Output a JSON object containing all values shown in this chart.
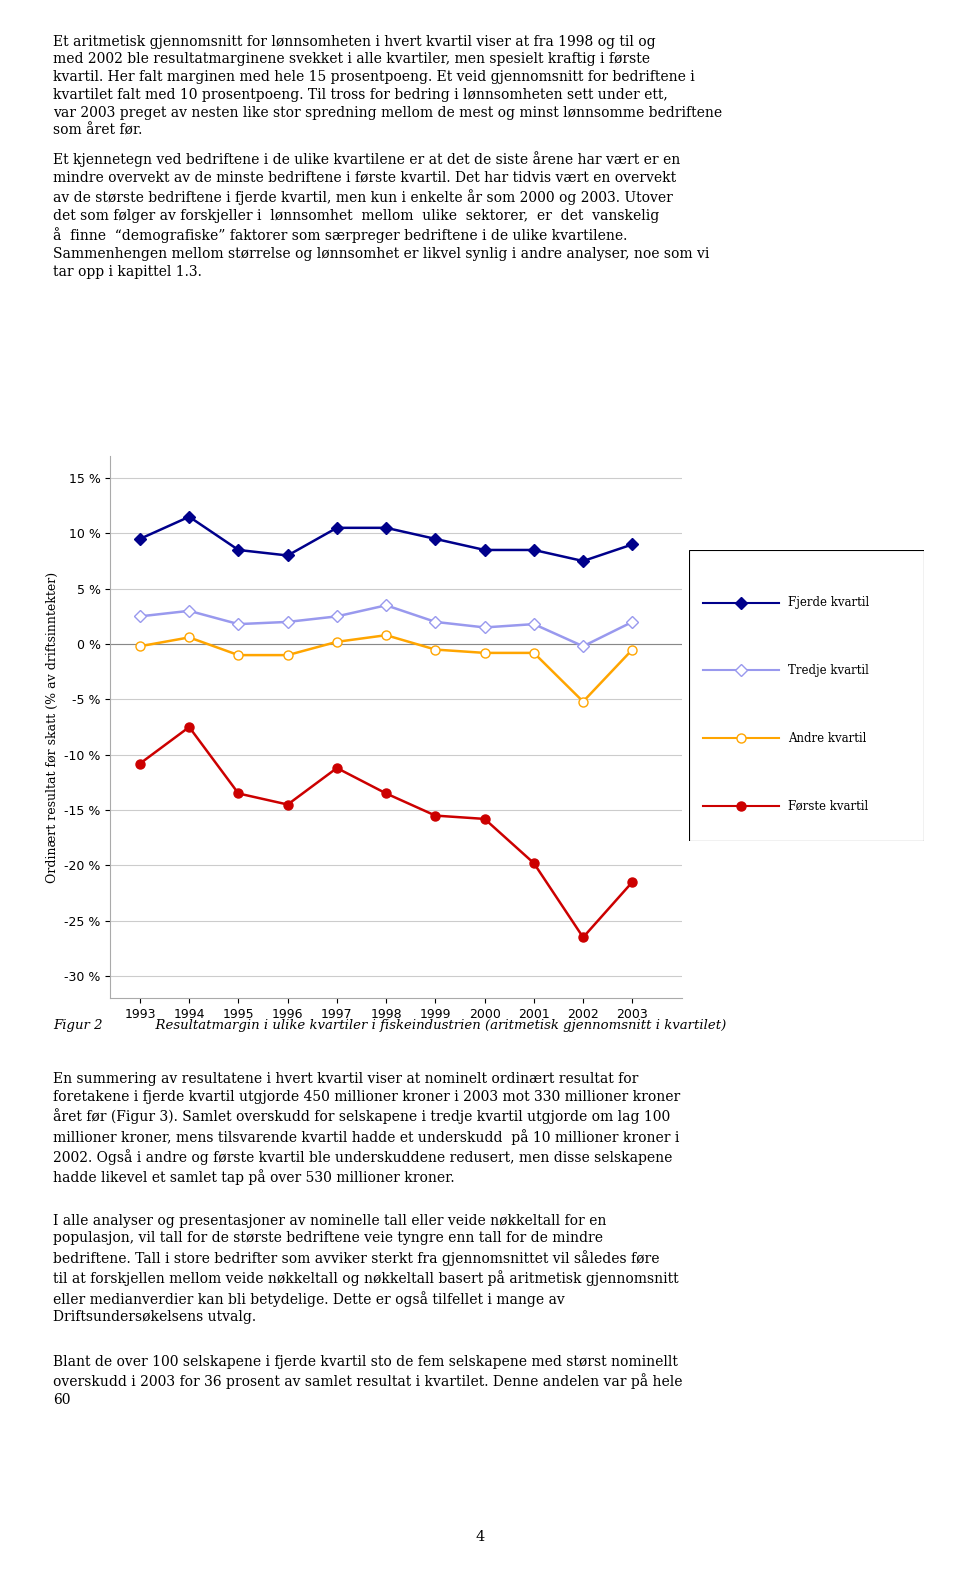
{
  "years": [
    1993,
    1994,
    1995,
    1996,
    1997,
    1998,
    1999,
    2000,
    2001,
    2002,
    2003
  ],
  "fjerde_kvartil": [
    9.5,
    11.5,
    8.5,
    8.0,
    10.5,
    10.5,
    9.5,
    8.5,
    8.5,
    7.5,
    9.0
  ],
  "tredje_kvartil": [
    2.5,
    3.0,
    1.8,
    2.0,
    2.5,
    3.5,
    2.0,
    1.5,
    1.8,
    -0.2,
    2.0
  ],
  "andre_kvartil": [
    -0.2,
    0.6,
    -1.0,
    -1.0,
    0.2,
    0.8,
    -0.5,
    -0.8,
    -0.8,
    -5.2,
    -0.5
  ],
  "forste_kvartil": [
    -10.8,
    -7.5,
    -13.5,
    -14.5,
    -11.2,
    -13.5,
    -15.5,
    -15.8,
    -19.8,
    -26.5,
    -21.5
  ],
  "fjerde_color": "#00008B",
  "tredje_color": "#9999EE",
  "andre_color": "#FFA500",
  "forste_color": "#CC0000",
  "ylabel": "Ordinært resultat før skatt (% av driftsinntekter)",
  "ylim": [
    -32,
    17
  ],
  "yticks": [
    -30,
    -25,
    -20,
    -15,
    -10,
    -5,
    0,
    5,
    10,
    15
  ],
  "ytick_labels": [
    "-30 %",
    "-25 %",
    "-20 %",
    "-15 %",
    "-10 %",
    "-5 %",
    "0 %",
    "5 %",
    "10 %",
    "15 %"
  ],
  "legend_entries": [
    "Fjerde kvartil",
    "Tredje kvartil",
    "Andre kvartil",
    "Første kvartil"
  ],
  "figcaption": "Figur 2    Resultatmargin i ulike kvartiler i fiskeindustrien (aritmetisk gjennomsnitt i kvartilet)",
  "marker_fjerde": "D",
  "marker_tredje": "D",
  "marker_andre": "o",
  "marker_forste": "o",
  "text1": "Et aritmetisk gjennomsnitt for lønnsomheten i hvert kvartil viser at fra 1998 og til og med 2002 ble resultatmarginene svekket i alle kvartiler, men spesielt kraftig i første kvartil. Her falt marginen med hele 15 prosentpoeng. Et veid gjennomsnitt for bedriftene i kvartilet falt med 10 prosentpoeng. Til tross for bedring i lønnsomheten sett under ett, var 2003 preget av nesten like stor spredning mellom de mest og minst lønnsomme bedriftene som året før.",
  "text2": "Et kjennetegn ved bedriftene i de ulike kvartilene er at det de siste årene har vært er en mindre overvekt av de minste bedriftene i første kvartil. Det har tidvis vært en overvekt av de største bedriftene i fjerde kvartil, men kun i enkelte år som 2000 og 2003. Utover det som følger av forskjeller i  lønnsomhet  mellom  ulike  sektorer,  er  det  vanskelig  å  finne  “demografiske” faktorer som særpreger bedriftene i de ulike kvartilene. Sammenhengen mellom størrelse og lønnsomhet er likvel synlig i andre analyser, noe som vi tar opp i kapittel 1.3.",
  "text3": "En summering av resultatene i hvert kvartil viser at nominelt ordinært resultat for foretakene i fjerde kvartil utgjorde 450 millioner kroner i 2003 mot 330 millioner kroner året før (Figur 3). Samlet overskudd for selskapene i tredje kvartil utgjorde om lag 100 millioner kroner, mens tilsvarende kvartil hadde et underskudd  på 10 millioner kroner i 2002. Også i andre og første kvartil ble underskuddene redusert, men disse selskapene hadde likevel et samlet tap på over 530 millioner kroner.",
  "text4": "I alle analyser og presentasjoner av nominelle tall eller veide nøkkeltall for en populasjon, vil tall for de største bedriftene veie tyngre enn tall for de mindre bedriftene. Tall i store bedrifter som avviker sterkt fra gjennomsnittet vil således føre til at forskjellen mellom veide nøkkeltall og nøkkeltall basert på aritmetisk gjennomsnitt eller medianverdier kan bli betydelige. Dette er også tilfellet i mange av Driftsundersøkelsens utvalg.",
  "text5": "Blant de over 100 selskapene i fjerde kvartil sto de fem selskapene med størst nominellt overskudd i 2003 for 36 prosent av samlet resultat i kvartilet. Denne andelen var på hele 60"
}
